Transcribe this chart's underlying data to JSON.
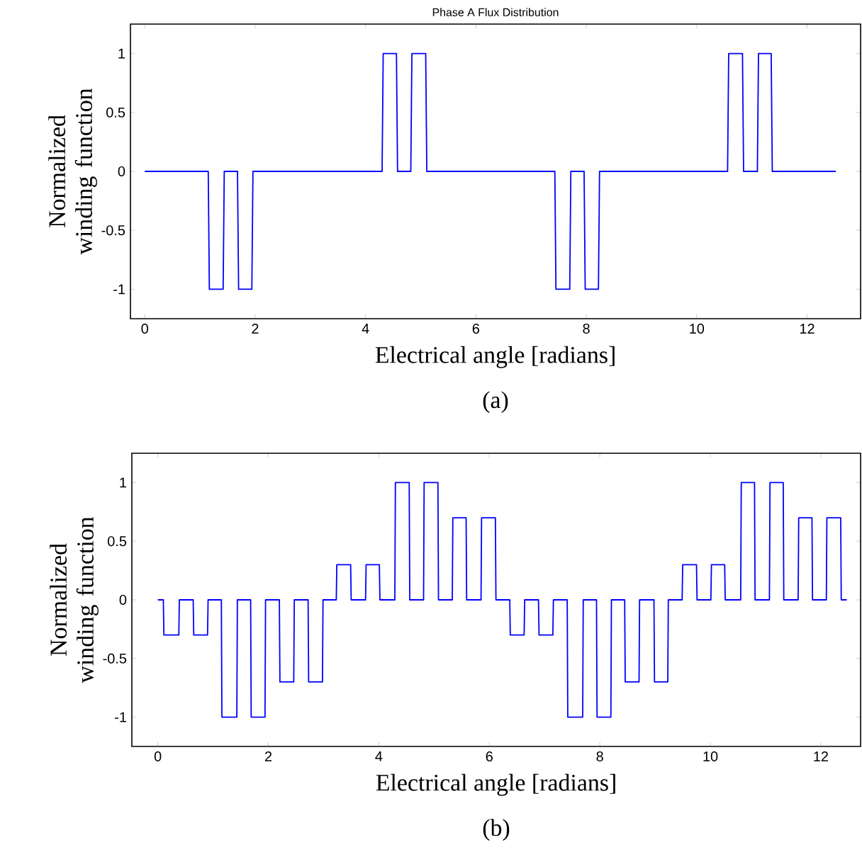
{
  "chart_data": [
    {
      "type": "line",
      "title": "Phase A Flux Distribution",
      "xlabel": "Electrical angle [radians]",
      "ylabel": "Normalized winding function",
      "annotations": [
        "(a)"
      ],
      "xlim": [
        -0.26,
        12.97
      ],
      "ylim": [
        -1.25,
        1.25
      ],
      "xticks": [
        0,
        2,
        4,
        6,
        8,
        10,
        12
      ],
      "yticks": [
        -1,
        -0.5,
        0,
        0.5,
        1
      ],
      "series": [
        {
          "color": "#0000ff",
          "x": [
            0,
            1.15,
            1.17,
            1.42,
            1.44,
            1.68,
            1.7,
            1.94,
            1.96,
            4.3,
            4.32,
            4.56,
            4.58,
            4.82,
            4.84,
            5.09,
            5.11,
            7.43,
            7.45,
            7.7,
            7.72,
            7.96,
            7.98,
            8.22,
            8.24,
            10.56,
            10.58,
            10.83,
            10.85,
            11.1,
            11.12,
            11.35,
            11.37,
            12.52
          ],
          "values": [
            0,
            0,
            -1,
            -1,
            0,
            0,
            -1,
            -1,
            0,
            0,
            1,
            1,
            0,
            0,
            1,
            1,
            0,
            0,
            -1,
            -1,
            0,
            0,
            -1,
            -1,
            0,
            0,
            1,
            1,
            0,
            0,
            1,
            1,
            0,
            0
          ]
        }
      ]
    },
    {
      "type": "line",
      "xlabel": "Electrical angle [radians]",
      "ylabel": "Normalized winding function",
      "annotations": [
        "(b)"
      ],
      "xlim": [
        -0.47,
        12.72
      ],
      "ylim": [
        -1.25,
        1.25
      ],
      "xticks": [
        0,
        2,
        4,
        6,
        8,
        10,
        12
      ],
      "yticks": [
        -1,
        -0.5,
        0,
        0.5,
        1
      ],
      "series": [
        {
          "color": "#0000ff",
          "x": [
            0,
            0.1,
            0.11,
            0.38,
            0.39,
            0.64,
            0.65,
            0.9,
            0.91,
            1.15,
            1.16,
            1.43,
            1.44,
            1.68,
            1.69,
            1.94,
            1.95,
            2.2,
            2.21,
            2.46,
            2.47,
            2.72,
            2.73,
            2.98,
            2.99,
            3.23,
            3.24,
            3.49,
            3.5,
            3.76,
            3.77,
            4.01,
            4.02,
            4.29,
            4.3,
            4.55,
            4.56,
            4.81,
            4.82,
            5.07,
            5.08,
            5.33,
            5.34,
            5.58,
            5.59,
            5.85,
            5.86,
            6.11,
            6.12,
            6.37,
            6.38,
            6.63,
            6.64,
            6.89,
            6.9,
            7.15,
            7.16,
            7.41,
            7.42,
            7.69,
            7.7,
            7.94,
            7.95,
            8.2,
            8.21,
            8.45,
            8.46,
            8.71,
            8.72,
            8.98,
            8.99,
            9.23,
            9.24,
            9.49,
            9.5,
            9.75,
            9.76,
            10.01,
            10.02,
            10.26,
            10.27,
            10.55,
            10.56,
            10.8,
            10.81,
            11.07,
            11.08,
            11.32,
            11.33,
            11.59,
            11.6,
            11.84,
            11.85,
            12.1,
            12.11,
            12.36,
            12.37,
            12.47
          ],
          "values": [
            0,
            0,
            -0.3,
            -0.3,
            0,
            0,
            -0.3,
            -0.3,
            0,
            0,
            -1,
            -1,
            0,
            0,
            -1,
            -1,
            0,
            0,
            -0.7,
            -0.7,
            0,
            0,
            -0.7,
            -0.7,
            0,
            0,
            0.3,
            0.3,
            0,
            0,
            0.3,
            0.3,
            0,
            0,
            1,
            1,
            0,
            0,
            1,
            1,
            0,
            0,
            0.7,
            0.7,
            0,
            0,
            0.7,
            0.7,
            0,
            0,
            -0.3,
            -0.3,
            0,
            0,
            -0.3,
            -0.3,
            0,
            0,
            -1,
            -1,
            0,
            0,
            -1,
            -1,
            0,
            0,
            -0.7,
            -0.7,
            0,
            0,
            -0.7,
            -0.7,
            0,
            0,
            0.3,
            0.3,
            0,
            0,
            0.3,
            0.3,
            0,
            0,
            1,
            1,
            0,
            0,
            1,
            1,
            0,
            0,
            0.7,
            0.7,
            0,
            0,
            0.7,
            0.7,
            0,
            0
          ]
        }
      ]
    }
  ]
}
